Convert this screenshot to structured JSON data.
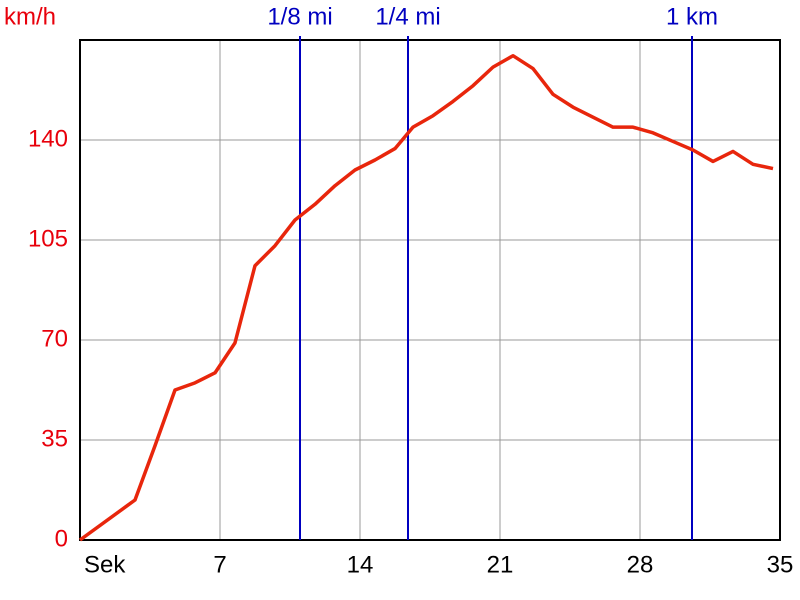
{
  "chart_data": {
    "type": "line",
    "y_label": "km/h",
    "x": [
      0,
      2.75,
      3.75,
      4.75,
      5.75,
      6.75,
      7.75,
      8.75,
      9.75,
      10.75,
      11.75,
      12.75,
      13.75,
      14.75,
      15.75,
      16.65,
      17.65,
      18.65,
      19.65,
      20.65,
      21.65,
      22.65,
      23.65,
      24.65,
      25.65,
      26.65,
      27.65,
      28.65,
      29.65,
      30.65,
      31.65,
      32.65,
      33.65,
      34.65
    ],
    "series": [
      {
        "color": "#e8260c",
        "values": [
          0,
          14,
          33,
          52.5,
          55,
          58.5,
          69,
          96,
          103,
          112,
          117.5,
          124,
          129.5,
          133,
          137,
          144.5,
          148.5,
          153.5,
          159,
          165.5,
          169.5,
          165,
          156,
          151.5,
          148,
          144.5,
          144.5,
          142.5,
          139.5,
          136.5,
          132.5,
          136,
          131.5,
          130
        ]
      }
    ],
    "xlim": [
      0,
      35
    ],
    "xticks": [
      {
        "value": 0,
        "label": "Sek"
      },
      7,
      14,
      21,
      28,
      35
    ],
    "ylim": [
      0,
      175
    ],
    "yticks": [
      0,
      35,
      70,
      105,
      140
    ],
    "grid": true,
    "y_label_color": "#e8000b",
    "marker_color": "#0000c0",
    "markers": [
      {
        "label": "1/8 mi",
        "x": 11
      },
      {
        "label": "1/4 mi",
        "x": 16.4
      },
      {
        "label": "1 km",
        "x": 30.6
      }
    ]
  }
}
